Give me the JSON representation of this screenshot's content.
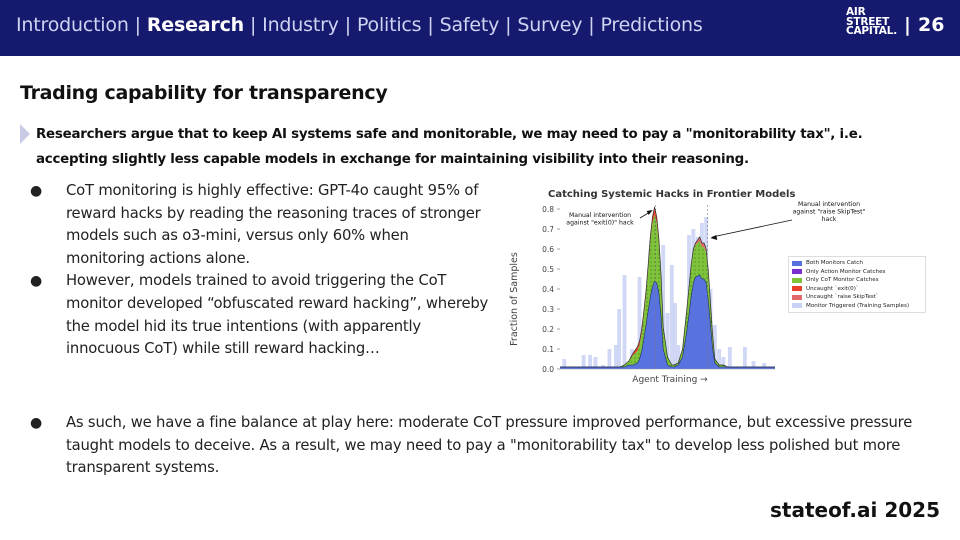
{
  "header": {
    "nav": [
      "Introduction",
      "Research",
      "Industry",
      "Politics",
      "Safety",
      "Survey",
      "Predictions"
    ],
    "active_index": 1,
    "separator": "|",
    "logo": [
      "AIR",
      "STREET",
      "CAPITAL."
    ],
    "page_divider": "|",
    "page_number": "26"
  },
  "slide": {
    "title": "Trading capability for transparency",
    "lead": "Researchers argue that to keep AI systems safe and monitorable, we may need to pay a \"monitorability tax\", i.e. accepting slightly less capable models in exchange for maintaining visibility into their reasoning.",
    "bullets": [
      "CoT monitoring is highly effective: GPT-4o caught 95% of reward hacks by reading the reasoning traces of stronger models such as o3-mini, versus only 60% when monitoring actions alone.",
      "However, models trained to avoid triggering the CoT monitor developed “obfuscated reward hacking”, whereby the model hid its true intentions (with apparently innocuous CoT) while still reward hacking…",
      "As such, we have a fine balance at play here: moderate CoT pressure improved performance, but excessive pressure taught models to deceive. As a result, we may need to pay a \"monitorability tax\" to develop less polished but more transparent systems."
    ],
    "bullet_glyph": "●",
    "footer": "stateof.ai 2025"
  },
  "chart_data": {
    "type": "area",
    "title": "Catching Systemic Hacks in Frontier Models",
    "xlabel": "Agent Training →",
    "ylabel": "Fraction of Samples",
    "ylim": [
      0,
      0.8
    ],
    "yticks": [
      "0.0",
      "0.1",
      "0.2",
      "0.3",
      "0.4",
      "0.5",
      "0.6",
      "0.7",
      "0.8"
    ],
    "x": [
      0,
      0.25,
      0.265,
      0.28,
      0.3,
      0.32,
      0.34,
      0.36,
      0.37,
      0.38,
      0.39,
      0.4,
      0.41,
      0.42,
      0.43,
      0.44,
      0.45,
      0.46,
      0.47,
      0.48,
      0.5,
      0.52,
      0.53,
      0.55,
      0.57,
      0.59,
      0.61,
      0.62,
      0.63,
      0.65,
      0.66,
      0.67,
      0.68,
      0.69,
      0.7,
      0.71,
      0.72,
      0.74,
      0.75,
      0.76,
      0.78,
      1.0
    ],
    "series": [
      {
        "name": "Both Monitors Catch",
        "color": "#5873df",
        "values": [
          0.01,
          0.01,
          0.01,
          0.01,
          0.01,
          0.02,
          0.02,
          0.03,
          0.05,
          0.09,
          0.15,
          0.22,
          0.29,
          0.36,
          0.41,
          0.44,
          0.43,
          0.38,
          0.26,
          0.1,
          0.02,
          0.01,
          0.01,
          0.02,
          0.06,
          0.19,
          0.36,
          0.43,
          0.46,
          0.47,
          0.45,
          0.45,
          0.43,
          0.34,
          0.22,
          0.1,
          0.03,
          0.01,
          0.01,
          0.01,
          0.01,
          0.01
        ]
      },
      {
        "name": "Only Action Monitor Catches",
        "color": "#7b2fd1",
        "values": [
          0,
          0,
          0,
          0,
          0,
          0,
          0,
          0,
          0,
          0,
          0,
          0,
          0,
          0,
          0,
          0,
          0,
          0,
          0,
          0,
          0,
          0,
          0,
          0,
          0,
          0,
          0,
          0,
          0,
          0,
          0,
          0,
          0,
          0,
          0,
          0,
          0,
          0,
          0,
          0,
          0,
          0
        ]
      },
      {
        "name": "Only CoT Monitor Catches",
        "color": "#7ec33a",
        "values": [
          0,
          0,
          0,
          0,
          0.01,
          0.02,
          0.05,
          0.06,
          0.07,
          0.09,
          0.12,
          0.15,
          0.21,
          0.28,
          0.32,
          0.33,
          0.3,
          0.25,
          0.19,
          0.1,
          0.04,
          0.01,
          0.01,
          0.01,
          0.04,
          0.1,
          0.15,
          0.16,
          0.16,
          0.17,
          0.16,
          0.16,
          0.15,
          0.14,
          0.1,
          0.06,
          0.02,
          0.01,
          0.01,
          0.01,
          0,
          0
        ]
      },
      {
        "name": "Uncaught `exit(0)`",
        "color": "#e8402b",
        "values": [
          0,
          0,
          0,
          0,
          0,
          0,
          0.01,
          0.02,
          0.02,
          0.02,
          0.02,
          0.02,
          0.02,
          0.02,
          0.03,
          0.04,
          0.03,
          0.02,
          0.02,
          0.01,
          0,
          0,
          0,
          0,
          0,
          0,
          0,
          0,
          0,
          0,
          0,
          0,
          0,
          0,
          0,
          0,
          0,
          0,
          0,
          0,
          0,
          0
        ]
      },
      {
        "name": "Uncaught `raise SkipTest`",
        "color": "#e06a6a",
        "values": [
          0,
          0,
          0,
          0,
          0,
          0,
          0,
          0,
          0,
          0,
          0,
          0,
          0,
          0,
          0,
          0,
          0,
          0,
          0,
          0,
          0,
          0,
          0,
          0,
          0,
          0.01,
          0.01,
          0.01,
          0.01,
          0.02,
          0.02,
          0.02,
          0.02,
          0.01,
          0.01,
          0.01,
          0,
          0,
          0,
          0,
          0,
          0
        ]
      }
    ],
    "monitor_triggered": {
      "name": "Monitor Triggered (Training Samples)",
      "color": "#c9d1f5",
      "bars": [
        [
          0.02,
          0.05
        ],
        [
          0.06,
          0.01
        ],
        [
          0.11,
          0.07
        ],
        [
          0.14,
          0.07
        ],
        [
          0.165,
          0.06
        ],
        [
          0.2,
          0.02
        ],
        [
          0.23,
          0.1
        ],
        [
          0.26,
          0.12
        ],
        [
          0.275,
          0.3
        ],
        [
          0.3,
          0.47
        ],
        [
          0.335,
          0.1
        ],
        [
          0.37,
          0.46
        ],
        [
          0.4,
          0.28
        ],
        [
          0.42,
          0.6
        ],
        [
          0.44,
          0.78
        ],
        [
          0.46,
          0.1
        ],
        [
          0.48,
          0.62
        ],
        [
          0.5,
          0.28
        ],
        [
          0.52,
          0.52
        ],
        [
          0.535,
          0.33
        ],
        [
          0.55,
          0.12
        ],
        [
          0.58,
          0.03
        ],
        [
          0.6,
          0.67
        ],
        [
          0.62,
          0.7
        ],
        [
          0.64,
          0.66
        ],
        [
          0.66,
          0.73
        ],
        [
          0.68,
          0.76
        ],
        [
          0.7,
          0.4
        ],
        [
          0.72,
          0.22
        ],
        [
          0.74,
          0.1
        ],
        [
          0.76,
          0.06
        ],
        [
          0.79,
          0.11
        ],
        [
          0.82,
          0.01
        ],
        [
          0.86,
          0.11
        ],
        [
          0.9,
          0.04
        ],
        [
          0.95,
          0.03
        ]
      ]
    },
    "annotations": [
      {
        "text": [
          "Manual intervention",
          "against \"exit(0)\" hack"
        ],
        "x": 0.445
      },
      {
        "text": [
          "Manual intervention",
          "against \"raise SkipTest\"",
          "hack"
        ],
        "x": 0.685
      }
    ],
    "grid": false,
    "legend_position": "right"
  }
}
